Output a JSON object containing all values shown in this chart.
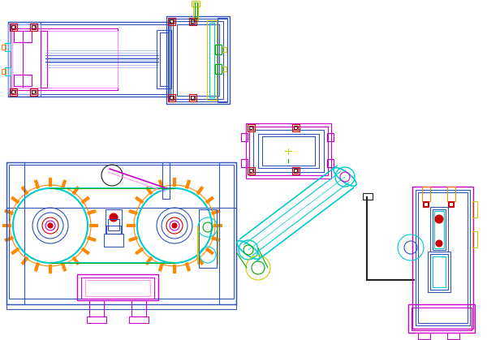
{
  "bg_color": "#ffffff",
  "B": "#3355bb",
  "M": "#cc00cc",
  "C": "#00cccc",
  "O": "#ff8800",
  "Y": "#cccc00",
  "R": "#cc0000",
  "G": "#00aa00",
  "P": "#ff99ff",
  "LB": "#8899ff",
  "DK": "#222222"
}
